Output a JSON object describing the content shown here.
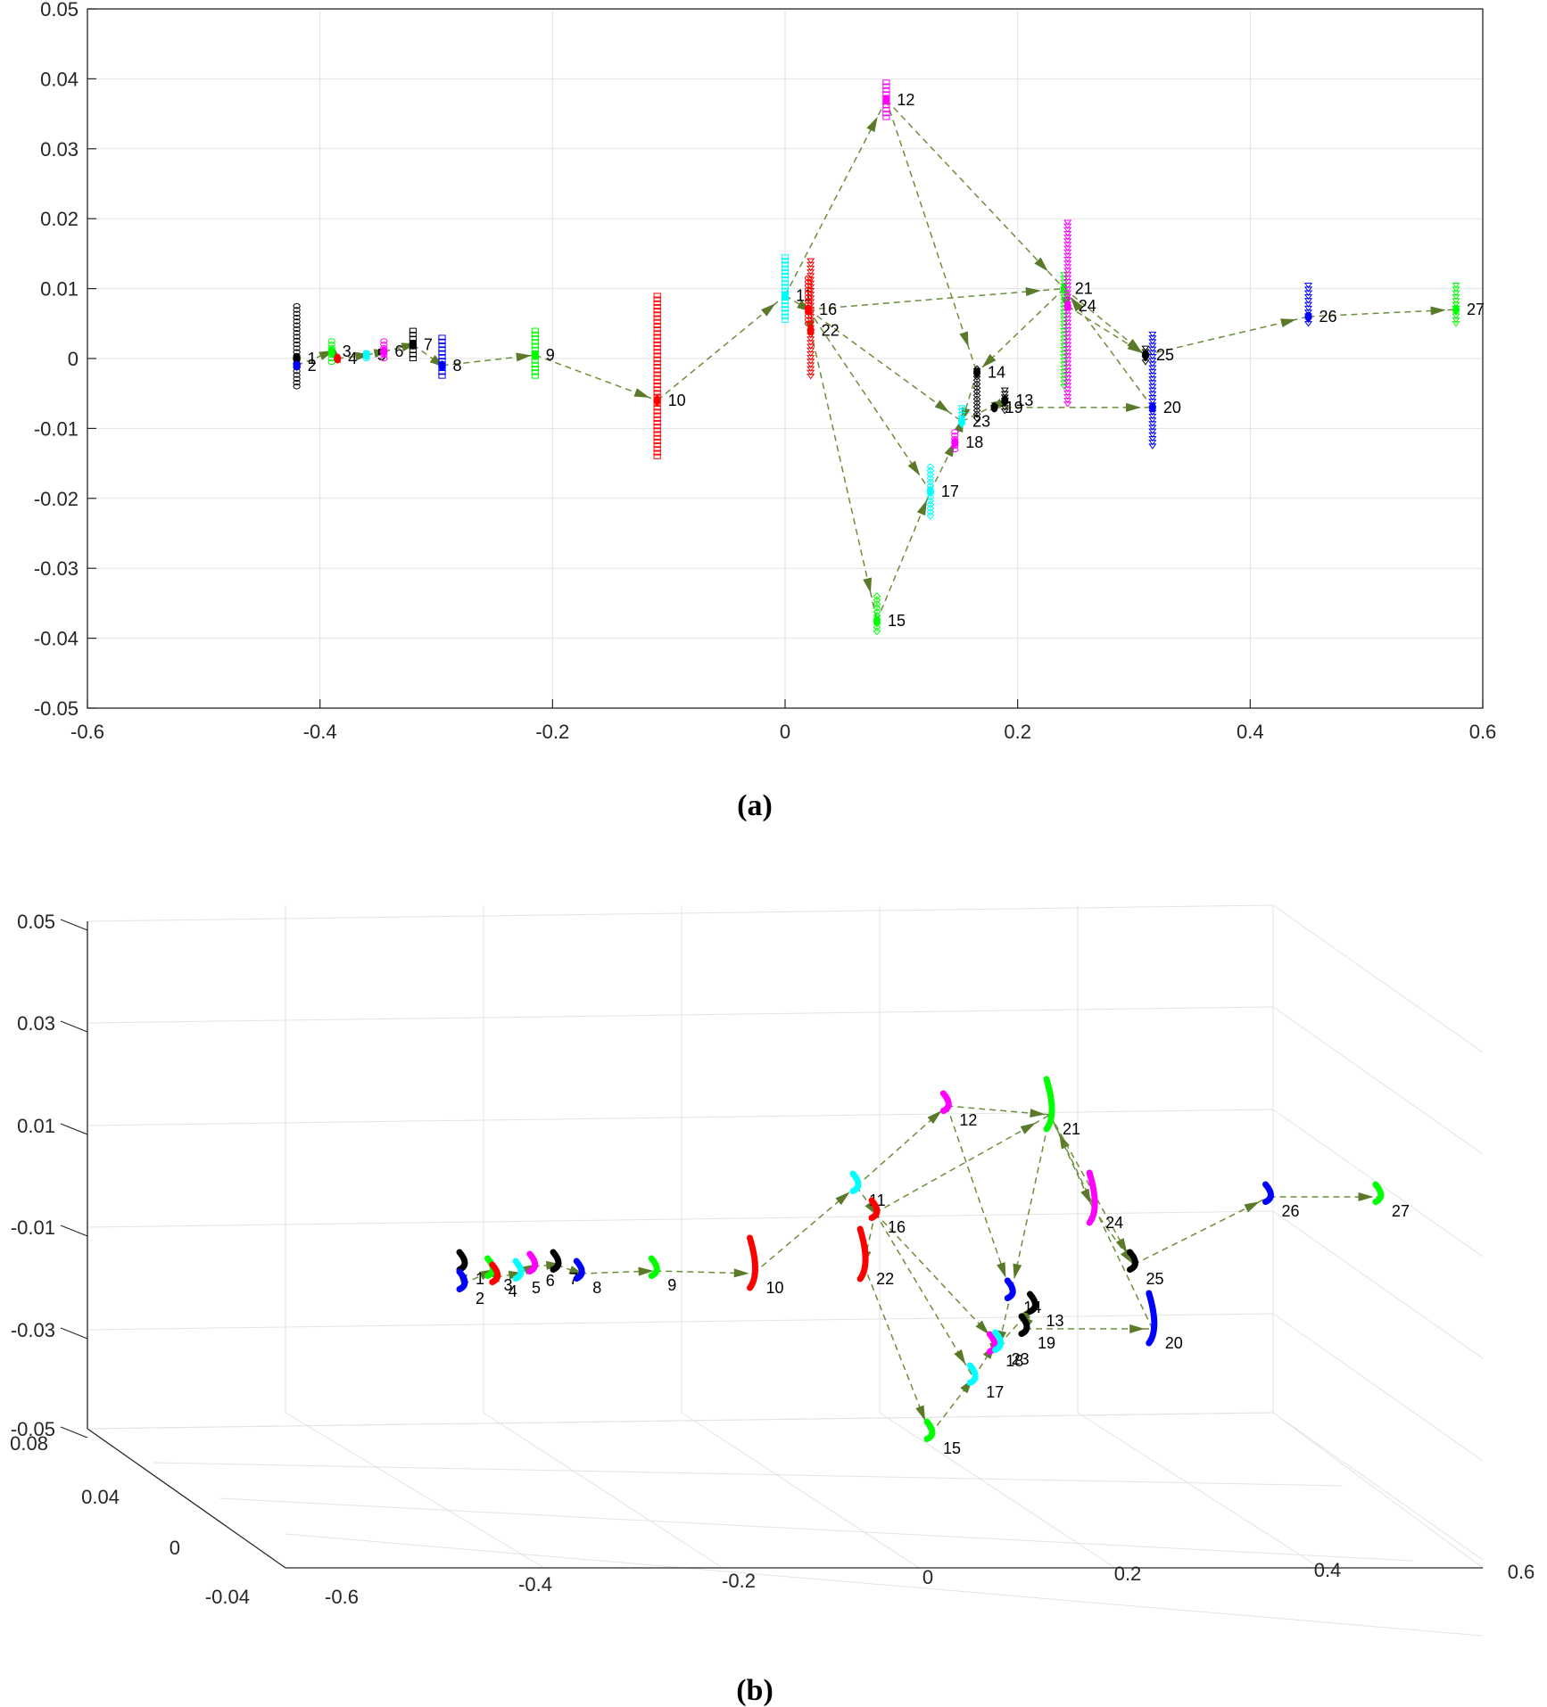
{
  "panels": [
    {
      "caption": "(a)"
    },
    {
      "caption": "(b)"
    }
  ],
  "chart_data": [
    {
      "type": "scatter",
      "title": "",
      "xlabel": "",
      "ylabel": "",
      "xlim": [
        -0.6,
        0.6
      ],
      "ylim": [
        -0.05,
        0.05
      ],
      "grid": true,
      "xticks": [
        -0.6,
        -0.4,
        -0.2,
        0,
        0.2,
        0.4,
        0.6
      ],
      "xtick_labels": [
        "-0.6",
        "-0.4",
        "-0.2",
        "0",
        "0.2",
        "0.4",
        "0.6"
      ],
      "yticks": [
        -0.05,
        -0.04,
        -0.03,
        -0.02,
        -0.01,
        0,
        0.01,
        0.02,
        0.03,
        0.04,
        0.05
      ],
      "ytick_labels": [
        "-0.05",
        "-0.04",
        "-0.03",
        "-0.02",
        "-0.01",
        "0",
        "0.01",
        "0.02",
        "0.03",
        "0.04",
        "0.05"
      ],
      "edge_color": "#6b8e3a",
      "nodes": [
        {
          "label": "1",
          "x": -0.42,
          "y": 0.0,
          "ymin": -0.004,
          "ymax": 0.0075,
          "color": "#000000",
          "marker": "circle"
        },
        {
          "label": "2",
          "x": -0.42,
          "y": -0.001,
          "ymin": -0.001,
          "ymax": -0.001,
          "color": "#0000ff",
          "marker": "square"
        },
        {
          "label": "3",
          "x": -0.39,
          "y": 0.001,
          "ymin": -0.0005,
          "ymax": 0.0025,
          "color": "#00ff00",
          "marker": "circle"
        },
        {
          "label": "4",
          "x": -0.385,
          "y": 0.0,
          "ymin": 0.0,
          "ymax": 0.0,
          "color": "#ff0000",
          "marker": "circle"
        },
        {
          "label": "5",
          "x": -0.36,
          "y": 0.0005,
          "ymin": 0.0,
          "ymax": 0.0008,
          "color": "#00ffff",
          "marker": "circle"
        },
        {
          "label": "6",
          "x": -0.345,
          "y": 0.001,
          "ymin": 0.0,
          "ymax": 0.0025,
          "color": "#ff00ff",
          "marker": "circle"
        },
        {
          "label": "7",
          "x": -0.32,
          "y": 0.002,
          "ymin": 0.0,
          "ymax": 0.004,
          "color": "#000000",
          "marker": "square"
        },
        {
          "label": "8",
          "x": -0.295,
          "y": -0.001,
          "ymin": -0.0025,
          "ymax": 0.003,
          "color": "#0000ff",
          "marker": "square"
        },
        {
          "label": "9",
          "x": -0.215,
          "y": 0.0005,
          "ymin": -0.0025,
          "ymax": 0.004,
          "color": "#00ff00",
          "marker": "square"
        },
        {
          "label": "10",
          "x": -0.11,
          "y": -0.006,
          "ymin": -0.014,
          "ymax": 0.009,
          "color": "#ff0000",
          "marker": "square"
        },
        {
          "label": "11",
          "x": 0.0,
          "y": 0.009,
          "ymin": 0.0055,
          "ymax": 0.0145,
          "color": "#00ffff",
          "marker": "square"
        },
        {
          "label": "12",
          "x": 0.087,
          "y": 0.037,
          "ymin": 0.0345,
          "ymax": 0.0395,
          "color": "#ff00ff",
          "marker": "square"
        },
        {
          "label": "13",
          "x": 0.189,
          "y": -0.006,
          "ymin": -0.0075,
          "ymax": -0.0045,
          "color": "#000000",
          "marker": "triangle-down"
        },
        {
          "label": "14",
          "x": 0.165,
          "y": -0.002,
          "ymin": -0.0085,
          "ymax": -0.0015,
          "color": "#000000",
          "marker": "diamond"
        },
        {
          "label": "15",
          "x": 0.079,
          "y": -0.0375,
          "ymin": -0.039,
          "ymax": -0.034,
          "color": "#00ff00",
          "marker": "diamond"
        },
        {
          "label": "16",
          "x": 0.02,
          "y": 0.007,
          "ymin": 0.005,
          "ymax": 0.0115,
          "color": "#ff0000",
          "marker": "circle"
        },
        {
          "label": "17",
          "x": 0.125,
          "y": -0.019,
          "ymin": -0.0225,
          "ymax": -0.0155,
          "color": "#00ffff",
          "marker": "diamond"
        },
        {
          "label": "18",
          "x": 0.146,
          "y": -0.012,
          "ymin": -0.013,
          "ymax": -0.0105,
          "color": "#ff00ff",
          "marker": "circle"
        },
        {
          "label": "19",
          "x": 0.18,
          "y": -0.007,
          "ymin": -0.007,
          "ymax": -0.007,
          "color": "#000000",
          "marker": "triangle-down"
        },
        {
          "label": "20",
          "x": 0.316,
          "y": -0.007,
          "ymin": -0.0125,
          "ymax": 0.0035,
          "color": "#0000ff",
          "marker": "triangle-down"
        },
        {
          "label": "21",
          "x": 0.24,
          "y": 0.01,
          "ymin": -0.004,
          "ymax": 0.012,
          "color": "#00ff00",
          "marker": "triangle-down"
        },
        {
          "label": "22",
          "x": 0.022,
          "y": 0.004,
          "ymin": -0.0025,
          "ymax": 0.014,
          "color": "#ff0000",
          "marker": "triangle-down"
        },
        {
          "label": "23",
          "x": 0.152,
          "y": -0.009,
          "ymin": -0.0095,
          "ymax": -0.007,
          "color": "#00ffff",
          "marker": "triangle-down"
        },
        {
          "label": "24",
          "x": 0.243,
          "y": 0.0075,
          "ymin": -0.0065,
          "ymax": 0.0195,
          "color": "#ff00ff",
          "marker": "triangle-down"
        },
        {
          "label": "25",
          "x": 0.31,
          "y": 0.0005,
          "ymin": -0.0005,
          "ymax": 0.0015,
          "color": "#000000",
          "marker": "triangle-down"
        },
        {
          "label": "26",
          "x": 0.45,
          "y": 0.006,
          "ymin": 0.005,
          "ymax": 0.0105,
          "color": "#0000ff",
          "marker": "triangle-down"
        },
        {
          "label": "27",
          "x": 0.577,
          "y": 0.007,
          "ymin": 0.005,
          "ymax": 0.0105,
          "color": "#00ff00",
          "marker": "triangle-down"
        }
      ],
      "edges": [
        [
          "1",
          "2"
        ],
        [
          "2",
          "3"
        ],
        [
          "3",
          "4"
        ],
        [
          "4",
          "5"
        ],
        [
          "5",
          "6"
        ],
        [
          "6",
          "7"
        ],
        [
          "7",
          "8"
        ],
        [
          "8",
          "9"
        ],
        [
          "9",
          "10"
        ],
        [
          "10",
          "11"
        ],
        [
          "11",
          "12"
        ],
        [
          "11",
          "16"
        ],
        [
          "16",
          "21"
        ],
        [
          "16",
          "22"
        ],
        [
          "16",
          "23"
        ],
        [
          "16",
          "17"
        ],
        [
          "22",
          "15"
        ],
        [
          "15",
          "17"
        ],
        [
          "17",
          "18"
        ],
        [
          "18",
          "23"
        ],
        [
          "12",
          "14"
        ],
        [
          "14",
          "23"
        ],
        [
          "23",
          "13"
        ],
        [
          "13",
          "19"
        ],
        [
          "19",
          "20"
        ],
        [
          "20",
          "21"
        ],
        [
          "21",
          "24"
        ],
        [
          "24",
          "25"
        ],
        [
          "21",
          "25"
        ],
        [
          "21",
          "14"
        ],
        [
          "25",
          "26"
        ],
        [
          "26",
          "27"
        ],
        [
          "12",
          "21"
        ]
      ]
    },
    {
      "type": "scatter",
      "title": "",
      "xlabel": "",
      "ylabel": "",
      "zlabel": "",
      "xlim": [
        -0.6,
        0.6
      ],
      "ylim": [
        -0.08,
        0.08
      ],
      "zlim": [
        -0.05,
        0.05
      ],
      "grid": true,
      "xtick_labels": [
        "-0.6",
        "-0.4",
        "-0.2",
        "0",
        "0.2",
        "0.4",
        "0.6"
      ],
      "ytick_labels": [
        "0.08",
        "0.04",
        "0",
        "-0.04"
      ],
      "ztick_labels": [
        "0.05",
        "0.03",
        "0.01",
        "-0.01",
        "-0.03",
        "-0.05"
      ],
      "edge_color": "#6b8e3a",
      "nodes": [
        {
          "label": "1",
          "x": -0.42,
          "color": "#000000"
        },
        {
          "label": "2",
          "x": -0.42,
          "color": "#0000ff"
        },
        {
          "label": "3",
          "x": -0.39,
          "color": "#00ff00"
        },
        {
          "label": "4",
          "x": -0.385,
          "color": "#ff0000"
        },
        {
          "label": "5",
          "x": -0.36,
          "color": "#00ffff"
        },
        {
          "label": "6",
          "x": -0.345,
          "color": "#ff00ff"
        },
        {
          "label": "7",
          "x": -0.32,
          "color": "#000000"
        },
        {
          "label": "8",
          "x": -0.295,
          "color": "#0000ff"
        },
        {
          "label": "9",
          "x": -0.215,
          "color": "#00ff00"
        },
        {
          "label": "10",
          "x": -0.11,
          "color": "#ff0000"
        },
        {
          "label": "11",
          "x": 0.0,
          "color": "#00ffff"
        },
        {
          "label": "12",
          "x": 0.087,
          "color": "#ff00ff"
        },
        {
          "label": "13",
          "x": 0.189,
          "color": "#000000"
        },
        {
          "label": "14",
          "x": 0.165,
          "color": "#0000ff"
        },
        {
          "label": "15",
          "x": 0.079,
          "color": "#00ff00"
        },
        {
          "label": "16",
          "x": 0.02,
          "color": "#ff0000"
        },
        {
          "label": "17",
          "x": 0.125,
          "color": "#00ffff"
        },
        {
          "label": "18",
          "x": 0.146,
          "color": "#ff00ff"
        },
        {
          "label": "19",
          "x": 0.18,
          "color": "#000000"
        },
        {
          "label": "20",
          "x": 0.316,
          "color": "#0000ff"
        },
        {
          "label": "21",
          "x": 0.24,
          "color": "#00ff00"
        },
        {
          "label": "22",
          "x": 0.022,
          "color": "#ff0000"
        },
        {
          "label": "23",
          "x": 0.152,
          "color": "#00ffff"
        },
        {
          "label": "24",
          "x": 0.243,
          "color": "#ff00ff"
        },
        {
          "label": "25",
          "x": 0.31,
          "color": "#000000"
        },
        {
          "label": "26",
          "x": 0.45,
          "color": "#0000ff"
        },
        {
          "label": "27",
          "x": 0.577,
          "color": "#00ff00"
        }
      ]
    }
  ]
}
